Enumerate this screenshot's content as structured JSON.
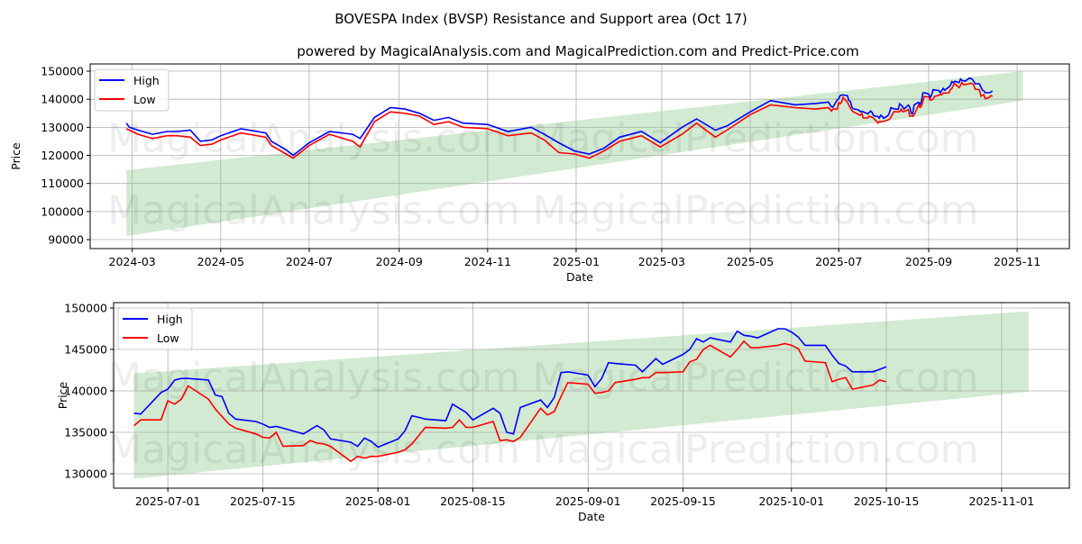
{
  "title": "BOVESPA Index (BVSP) Resistance and Support area (Oct 17)",
  "subtitle": "powered by MagicalAnalysis.com and MagicalPrediction.com and Predict-Price.com",
  "watermarks": [
    "MagicalAnalysis.com",
    "MagicalPrediction.com"
  ],
  "colors": {
    "high": "#0000ff",
    "low": "#ff0000",
    "band": "#2ca02c"
  },
  "chart_data": [
    {
      "type": "line",
      "xlabel": "Date",
      "ylabel": "Price",
      "xlim": [
        "2024-02-01",
        "2025-12-07"
      ],
      "ylim": [
        86800,
        152570
      ],
      "yticks": [
        90000,
        100000,
        110000,
        120000,
        130000,
        140000,
        150000
      ],
      "xticks": [
        "2024-03",
        "2024-05",
        "2024-07",
        "2024-09",
        "2024-11",
        "2025-01",
        "2025-03",
        "2025-05",
        "2025-07",
        "2025-09",
        "2025-11"
      ],
      "grid": true,
      "legend": {
        "position": "top-left",
        "entries": [
          "High",
          "Low"
        ]
      },
      "band": {
        "start": "2024-02-26",
        "end": "2025-11-05",
        "upper": [
          114700,
          150000
        ],
        "lower": [
          91300,
          139500
        ]
      },
      "series_note": "early part below; continues with chart_data[1].points",
      "points": [
        [
          "2024-02-26",
          131500,
          129500
        ],
        [
          "2024-02-28",
          130000,
          129000
        ],
        [
          "2024-03-05",
          129000,
          127500
        ],
        [
          "2024-03-15",
          127500,
          126000
        ],
        [
          "2024-03-25",
          128500,
          127000
        ],
        [
          "2024-04-01",
          128500,
          127000
        ],
        [
          "2024-04-10",
          129000,
          126500
        ],
        [
          "2024-04-17",
          125000,
          123500
        ],
        [
          "2024-04-25",
          125500,
          124000
        ],
        [
          "2024-05-01",
          127000,
          125500
        ],
        [
          "2024-05-15",
          129500,
          128000
        ],
        [
          "2024-06-01",
          128000,
          126500
        ],
        [
          "2024-06-05",
          125000,
          123500
        ],
        [
          "2024-06-15",
          122000,
          120500
        ],
        [
          "2024-06-20",
          120000,
          119000
        ],
        [
          "2024-07-01",
          124500,
          123500
        ],
        [
          "2024-07-15",
          128500,
          127500
        ],
        [
          "2024-07-31",
          127500,
          125000
        ],
        [
          "2024-08-05",
          126000,
          123000
        ],
        [
          "2024-08-15",
          133500,
          132000
        ],
        [
          "2024-08-26",
          137000,
          135500
        ],
        [
          "2024-09-05",
          136500,
          135000
        ],
        [
          "2024-09-15",
          135000,
          134000
        ],
        [
          "2024-09-25",
          132500,
          131000
        ],
        [
          "2024-10-05",
          133500,
          132000
        ],
        [
          "2024-10-15",
          131500,
          130000
        ],
        [
          "2024-11-01",
          131000,
          129500
        ],
        [
          "2024-11-15",
          128500,
          127000
        ],
        [
          "2024-12-01",
          130000,
          128000
        ],
        [
          "2024-12-10",
          127500,
          125500
        ],
        [
          "2024-12-20",
          124500,
          121000
        ],
        [
          "2024-12-31",
          121500,
          120500
        ],
        [
          "2025-01-10",
          120500,
          119000
        ],
        [
          "2025-01-20",
          122500,
          121500
        ],
        [
          "2025-01-31",
          126500,
          125000
        ],
        [
          "2025-02-15",
          128500,
          127000
        ],
        [
          "2025-02-28",
          124500,
          123000
        ],
        [
          "2025-03-15",
          130000,
          127500
        ],
        [
          "2025-03-25",
          133000,
          131500
        ],
        [
          "2025-04-07",
          129000,
          126500
        ],
        [
          "2025-04-15",
          130500,
          129000
        ],
        [
          "2025-05-01",
          135500,
          134500
        ],
        [
          "2025-05-15",
          139500,
          138000
        ],
        [
          "2025-06-01",
          138000,
          137000
        ],
        [
          "2025-06-15",
          138500,
          136500
        ],
        [
          "2025-06-24",
          139000,
          137000
        ]
      ]
    },
    {
      "type": "line",
      "xlabel": "Date",
      "ylabel": "Price",
      "xlim": [
        "2025-06-23",
        "2025-11-11"
      ],
      "ylim": [
        128260,
        150650
      ],
      "yticks": [
        130000,
        135000,
        140000,
        145000,
        150000
      ],
      "xticks": [
        "2025-07-01",
        "2025-07-15",
        "2025-08-01",
        "2025-08-15",
        "2025-09-01",
        "2025-09-15",
        "2025-10-01",
        "2025-10-15",
        "2025-11-01"
      ],
      "grid": true,
      "legend": {
        "position": "top-left",
        "entries": [
          "High",
          "Low"
        ]
      },
      "band": {
        "start": "2025-06-26",
        "end": "2025-11-05",
        "upper": [
          142100,
          149600
        ],
        "lower": [
          129400,
          139900
        ]
      },
      "points": [
        [
          "2025-06-26",
          137300,
          135800
        ],
        [
          "2025-06-27",
          137200,
          136500
        ],
        [
          "2025-06-30",
          139800,
          136500
        ],
        [
          "2025-07-01",
          140200,
          138800
        ],
        [
          "2025-07-02",
          141300,
          138400
        ],
        [
          "2025-07-03",
          141500,
          139000
        ],
        [
          "2025-07-04",
          141500,
          140600
        ],
        [
          "2025-07-07",
          141300,
          139000
        ],
        [
          "2025-07-08",
          139500,
          137800
        ],
        [
          "2025-07-09",
          139300,
          136900
        ],
        [
          "2025-07-10",
          137300,
          136000
        ],
        [
          "2025-07-11",
          136600,
          135500
        ],
        [
          "2025-07-14",
          136300,
          134800
        ],
        [
          "2025-07-15",
          136000,
          134400
        ],
        [
          "2025-07-16",
          135600,
          134300
        ],
        [
          "2025-07-17",
          135700,
          135000
        ],
        [
          "2025-07-18",
          135500,
          133300
        ],
        [
          "2025-07-21",
          134800,
          133400
        ],
        [
          "2025-07-22",
          135300,
          134000
        ],
        [
          "2025-07-23",
          135800,
          133700
        ],
        [
          "2025-07-24",
          135300,
          133600
        ],
        [
          "2025-07-25",
          134200,
          133300
        ],
        [
          "2025-07-28",
          133800,
          131500
        ],
        [
          "2025-07-29",
          133300,
          132100
        ],
        [
          "2025-07-30",
          134300,
          131900
        ],
        [
          "2025-07-31",
          133900,
          132100
        ],
        [
          "2025-08-01",
          133200,
          132100
        ],
        [
          "2025-08-04",
          134200,
          132600
        ],
        [
          "2025-08-05",
          135200,
          132900
        ],
        [
          "2025-08-06",
          137000,
          133600
        ],
        [
          "2025-08-07",
          136800,
          134600
        ],
        [
          "2025-08-08",
          136600,
          135600
        ],
        [
          "2025-08-11",
          136400,
          135500
        ],
        [
          "2025-08-12",
          138400,
          135600
        ],
        [
          "2025-08-13",
          137900,
          136500
        ],
        [
          "2025-08-14",
          137400,
          135600
        ],
        [
          "2025-08-15",
          136500,
          135600
        ],
        [
          "2025-08-18",
          137900,
          136300
        ],
        [
          "2025-08-19",
          137300,
          134000
        ],
        [
          "2025-08-20",
          135000,
          134100
        ],
        [
          "2025-08-21",
          134800,
          133900
        ],
        [
          "2025-08-22",
          138000,
          134400
        ],
        [
          "2025-08-25",
          138900,
          137900
        ],
        [
          "2025-08-26",
          138000,
          137100
        ],
        [
          "2025-08-27",
          139200,
          137500
        ],
        [
          "2025-08-28",
          142200,
          139300
        ],
        [
          "2025-08-29",
          142300,
          141000
        ],
        [
          "2025-09-01",
          141900,
          140800
        ],
        [
          "2025-09-02",
          140500,
          139700
        ],
        [
          "2025-09-03",
          141500,
          139800
        ],
        [
          "2025-09-04",
          143400,
          140000
        ],
        [
          "2025-09-05",
          143300,
          141000
        ],
        [
          "2025-09-08",
          143100,
          141400
        ],
        [
          "2025-09-09",
          142300,
          141600
        ],
        [
          "2025-09-10",
          143100,
          141600
        ],
        [
          "2025-09-11",
          143900,
          142200
        ],
        [
          "2025-09-12",
          143200,
          142200
        ],
        [
          "2025-09-15",
          144400,
          142300
        ],
        [
          "2025-09-16",
          145000,
          143500
        ],
        [
          "2025-09-17",
          146300,
          143800
        ],
        [
          "2025-09-18",
          145900,
          145000
        ],
        [
          "2025-09-19",
          146400,
          145500
        ],
        [
          "2025-09-22",
          145900,
          144100
        ],
        [
          "2025-09-23",
          147200,
          145000
        ],
        [
          "2025-09-24",
          146700,
          146000
        ],
        [
          "2025-09-25",
          146600,
          145200
        ],
        [
          "2025-09-26",
          146400,
          145200
        ],
        [
          "2025-09-29",
          147500,
          145500
        ],
        [
          "2025-09-30",
          147500,
          145700
        ],
        [
          "2025-10-01",
          147100,
          145500
        ],
        [
          "2025-10-02",
          146500,
          145100
        ],
        [
          "2025-10-03",
          145500,
          143600
        ],
        [
          "2025-10-06",
          145500,
          143400
        ],
        [
          "2025-10-07",
          144300,
          141100
        ],
        [
          "2025-10-08",
          143300,
          141400
        ],
        [
          "2025-10-09",
          143000,
          141600
        ],
        [
          "2025-10-10",
          142300,
          140200
        ],
        [
          "2025-10-13",
          142300,
          140700
        ],
        [
          "2025-10-14",
          142600,
          141300
        ],
        [
          "2025-10-15",
          142900,
          141100
        ]
      ]
    }
  ]
}
